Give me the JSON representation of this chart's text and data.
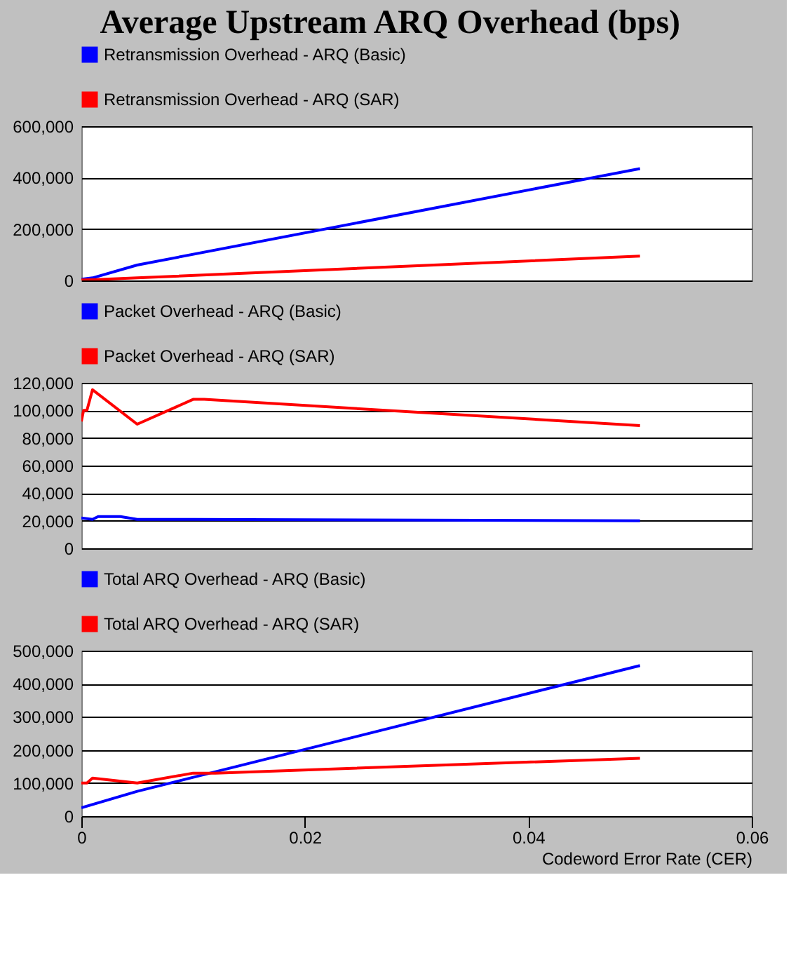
{
  "chart_data": [
    {
      "type": "line",
      "title": "Average Upstream  ARQ Overhead (bps)",
      "xlim": [
        0,
        0.06
      ],
      "xticks": [
        0,
        0.02,
        0.04,
        0.06
      ],
      "ylim": [
        0,
        600000
      ],
      "yticks": [
        {
          "value": 0,
          "label": "0"
        },
        {
          "value": 200000,
          "label": "200,000"
        },
        {
          "value": 400000,
          "label": "400,000"
        },
        {
          "value": 600000,
          "label": "600,000"
        }
      ],
      "grid": "y",
      "legend": "top left",
      "tick_labels": "y",
      "series": [
        {
          "name": "Retransmission Overhead - ARQ (Basic)",
          "color": "#0000ff",
          "x": [
            0,
            0.001,
            0.005,
            0.05
          ],
          "values": [
            5000,
            10000,
            60000,
            435000
          ]
        },
        {
          "name": "Retransmission Overhead - ARQ (SAR)",
          "color": "#ff0000",
          "x": [
            0,
            0.001,
            0.005,
            0.05
          ],
          "values": [
            2000,
            3000,
            10000,
            95000
          ]
        }
      ]
    },
    {
      "type": "line",
      "xlim": [
        0,
        0.06
      ],
      "xticks": [
        0,
        0.02,
        0.04,
        0.06
      ],
      "ylim": [
        0,
        120000
      ],
      "yticks": [
        {
          "value": 0,
          "label": "0"
        },
        {
          "value": 20000,
          "label": "20,000"
        },
        {
          "value": 40000,
          "label": "40,000"
        },
        {
          "value": 60000,
          "label": "60,000"
        },
        {
          "value": 80000,
          "label": "80,000"
        },
        {
          "value": 100000,
          "label": "100,000"
        },
        {
          "value": 120000,
          "label": "120,000"
        }
      ],
      "grid": "y",
      "legend": "top left",
      "tick_labels": "y",
      "series": [
        {
          "name": "Packet Overhead - ARQ (Basic)",
          "color": "#0000ff",
          "x": [
            0,
            0.001,
            0.0015,
            0.0035,
            0.005,
            0.01,
            0.05
          ],
          "values": [
            22000,
            21000,
            23000,
            23000,
            21000,
            21000,
            20000
          ]
        },
        {
          "name": "Packet Overhead - ARQ (SAR)",
          "color": "#ff0000",
          "x": [
            0,
            0.0002,
            0.0005,
            0.001,
            0.005,
            0.01,
            0.011,
            0.05
          ],
          "values": [
            92000,
            100000,
            100000,
            115000,
            90000,
            108000,
            108000,
            89000
          ]
        }
      ]
    },
    {
      "type": "line",
      "xlabel": "Codeword Error Rate (CER)",
      "xlim": [
        0,
        0.06
      ],
      "xticks": [
        0,
        0.02,
        0.04,
        0.06
      ],
      "ylim": [
        0,
        500000
      ],
      "yticks": [
        {
          "value": 0,
          "label": "0"
        },
        {
          "value": 100000,
          "label": "100,000"
        },
        {
          "value": 200000,
          "label": "200,000"
        },
        {
          "value": 300000,
          "label": "300,000"
        },
        {
          "value": 400000,
          "label": "400,000"
        },
        {
          "value": 500000,
          "label": "500,000"
        }
      ],
      "grid": "y",
      "legend": "top left",
      "series": [
        {
          "name": "Total ARQ Overhead - ARQ (Basic)",
          "color": "#0000ff",
          "x": [
            0,
            0.005,
            0.05
          ],
          "values": [
            25000,
            75000,
            455000
          ]
        },
        {
          "name": "Total ARQ Overhead - ARQ (SAR)",
          "color": "#ff0000",
          "x": [
            0,
            0.0005,
            0.001,
            0.005,
            0.01,
            0.012,
            0.05
          ],
          "values": [
            100000,
            100000,
            115000,
            100000,
            130000,
            130000,
            175000
          ]
        }
      ]
    }
  ]
}
